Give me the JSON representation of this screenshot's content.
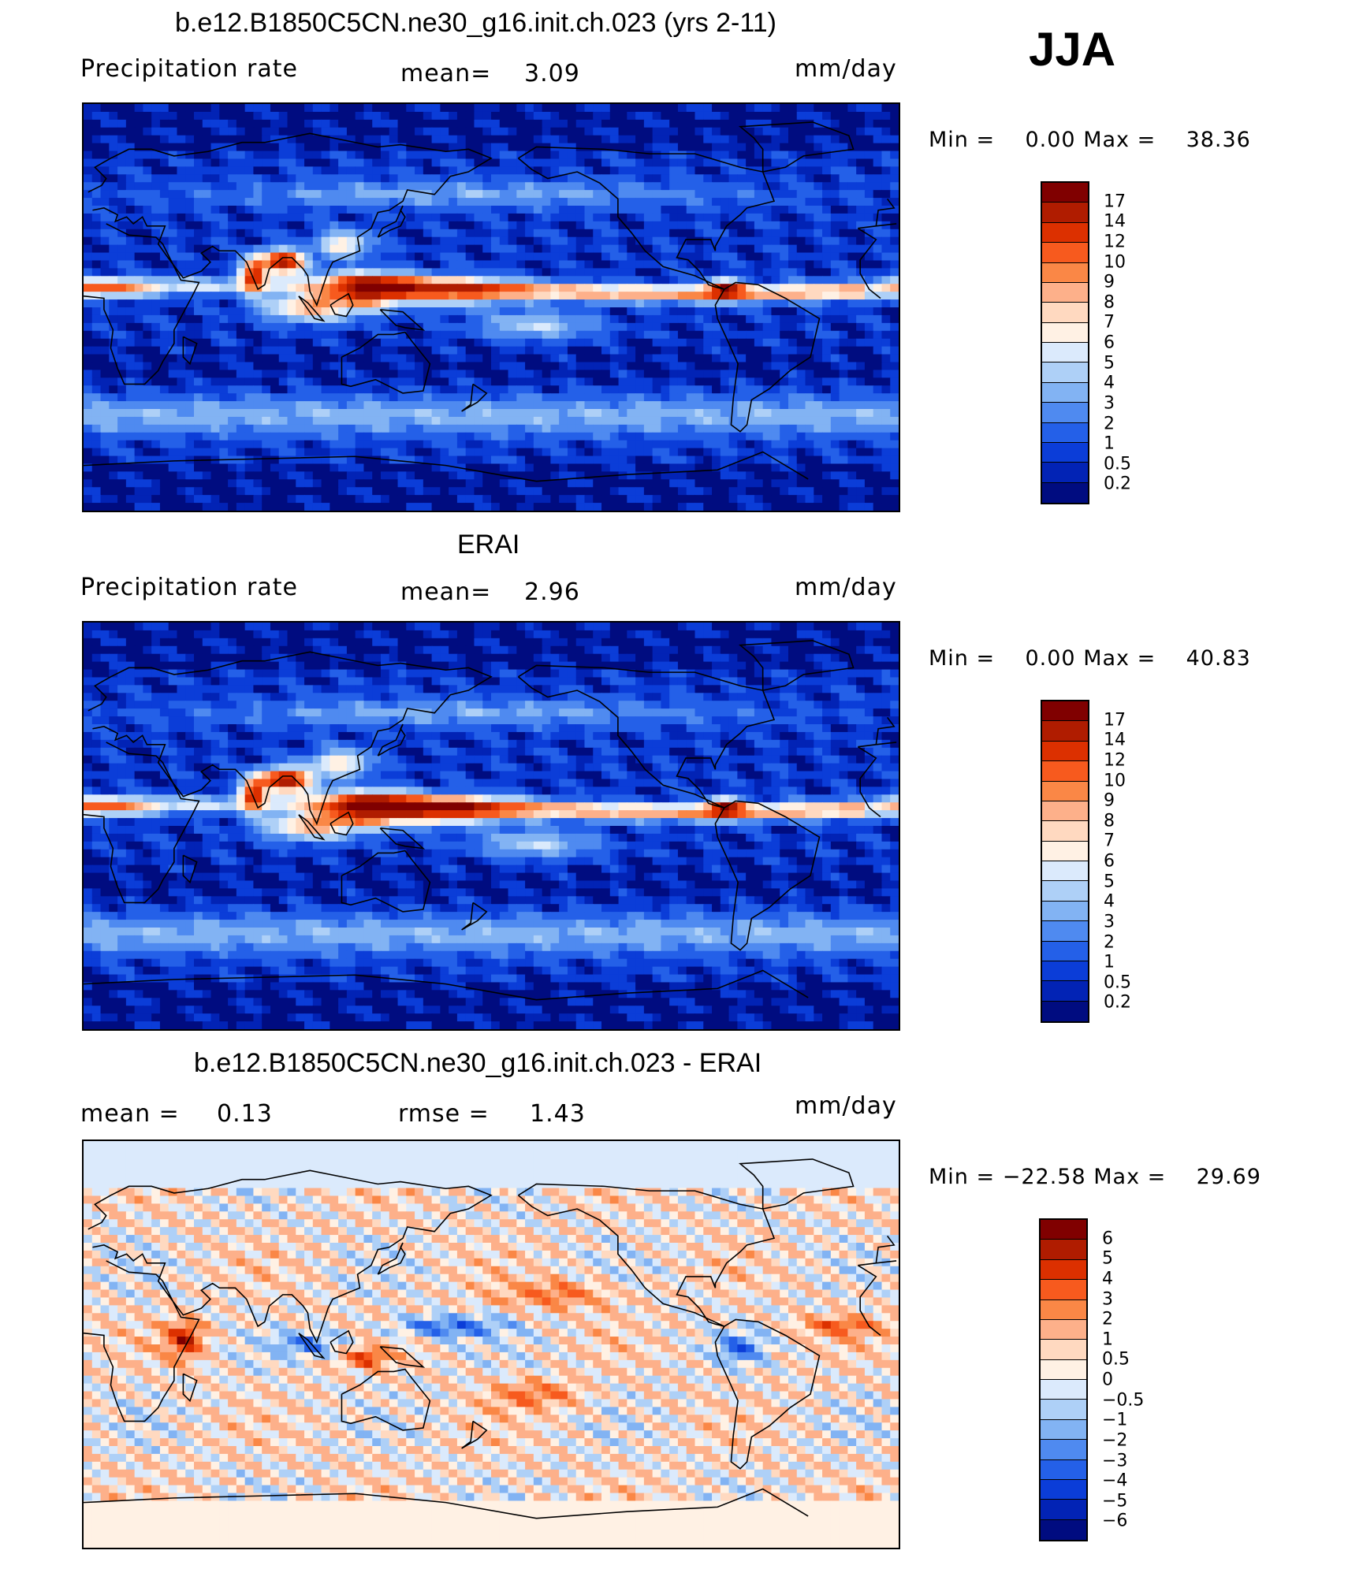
{
  "season": "JJA",
  "panels": [
    {
      "title": "b.e12.B1850C5CN.ne30_g16.init.ch.023 (yrs 2-11)",
      "left_label": "Precipitation rate",
      "center_label": "mean=",
      "center_value": "3.09",
      "units": "mm/day",
      "min_label": "Min =",
      "min_value": "0.00",
      "max_label": "Max =",
      "max_value": "38.36",
      "colorbar": {
        "ticks": [
          "17",
          "14",
          "12",
          "10",
          "9",
          "8",
          "7",
          "6",
          "5",
          "4",
          "3",
          "2",
          "1",
          "0.5",
          "0.2"
        ],
        "colors": [
          "#800000",
          "#b01c00",
          "#dc3000",
          "#f75a1e",
          "#fa8746",
          "#fdb08a",
          "#ffd9c0",
          "#fff1e4",
          "#dbeafc",
          "#aed0f7",
          "#82b3f3",
          "#4f8af0",
          "#2460e8",
          "#0b3dd8",
          "#0223b5",
          "#000c80"
        ]
      },
      "field": "model"
    },
    {
      "title": "ERAI",
      "left_label": "Precipitation rate",
      "center_label": "mean=",
      "center_value": "2.96",
      "units": "mm/day",
      "min_label": "Min =",
      "min_value": "0.00",
      "max_label": "Max =",
      "max_value": "40.83",
      "colorbar": {
        "ticks": [
          "17",
          "14",
          "12",
          "10",
          "9",
          "8",
          "7",
          "6",
          "5",
          "4",
          "3",
          "2",
          "1",
          "0.5",
          "0.2"
        ],
        "colors": [
          "#800000",
          "#b01c00",
          "#dc3000",
          "#f75a1e",
          "#fa8746",
          "#fdb08a",
          "#ffd9c0",
          "#fff1e4",
          "#dbeafc",
          "#aed0f7",
          "#82b3f3",
          "#4f8af0",
          "#2460e8",
          "#0b3dd8",
          "#0223b5",
          "#000c80"
        ]
      },
      "field": "obs"
    },
    {
      "title": "b.e12.B1850C5CN.ne30_g16.init.ch.023 - ERAI",
      "left_label": "mean =",
      "left_value": "0.13",
      "center_label": "rmse =",
      "center_value": "1.43",
      "units": "mm/day",
      "min_label": "Min =",
      "min_value": "−22.58",
      "max_label": "Max =",
      "max_value": "29.69",
      "colorbar": {
        "ticks": [
          "6",
          "5",
          "4",
          "3",
          "2",
          "1",
          "0.5",
          "0",
          "−0.5",
          "−1",
          "−2",
          "−3",
          "−4",
          "−5",
          "−6"
        ],
        "colors": [
          "#800000",
          "#b01c00",
          "#dc3000",
          "#f75a1e",
          "#fa8746",
          "#fdb08a",
          "#ffd9c0",
          "#fff1e4",
          "#dbeafc",
          "#aed0f7",
          "#82b3f3",
          "#4f8af0",
          "#2460e8",
          "#0b3dd8",
          "#0223b5",
          "#000c80"
        ]
      },
      "field": "diff"
    }
  ]
}
